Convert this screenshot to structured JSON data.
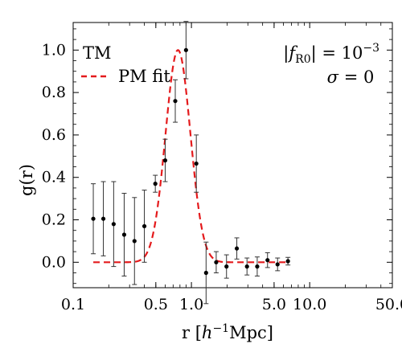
{
  "chart_data": {
    "type": "scatter",
    "xscale": "log",
    "xlim": [
      0.1,
      50.0
    ],
    "ylim": [
      -0.12,
      1.13
    ],
    "xticks": [
      {
        "value": 0.1,
        "label": "0.1"
      },
      {
        "value": 0.5,
        "label": "0.5"
      },
      {
        "value": 1.0,
        "label": "1.0"
      },
      {
        "value": 5.0,
        "label": "5.0"
      },
      {
        "value": 10.0,
        "label": "10.0"
      },
      {
        "value": 50.0,
        "label": "50.0"
      }
    ],
    "yticks": [
      {
        "value": 0.0,
        "label": "0.0"
      },
      {
        "value": 0.2,
        "label": "0.2"
      },
      {
        "value": 0.4,
        "label": "0.4"
      },
      {
        "value": 0.6,
        "label": "0.6"
      },
      {
        "value": 0.8,
        "label": "0.8"
      },
      {
        "value": 1.0,
        "label": "1.0"
      }
    ],
    "xlabel": {
      "prefix": "r [",
      "h": "h",
      "sup": "−1",
      "unit": "Mpc]"
    },
    "ylabel": "g(r)",
    "annotations": {
      "line1": {
        "pre": "|",
        "f": "f",
        "sub": "R0",
        "post": "| = 10",
        "sup": "−3"
      },
      "line2": {
        "sigma": "σ",
        "rest": " = 0"
      }
    },
    "legend_position": "top-left",
    "series": [
      {
        "name": "TM",
        "kind": "points-with-errorbars",
        "color": "#000000",
        "points": [
          {
            "x": 0.148,
            "y": 0.205,
            "err": 0.165
          },
          {
            "x": 0.18,
            "y": 0.205,
            "err": 0.175
          },
          {
            "x": 0.22,
            "y": 0.18,
            "err": 0.2
          },
          {
            "x": 0.27,
            "y": 0.13,
            "err": 0.195
          },
          {
            "x": 0.33,
            "y": 0.1,
            "err": 0.205
          },
          {
            "x": 0.4,
            "y": 0.17,
            "err": 0.17
          },
          {
            "x": 0.495,
            "y": 0.37,
            "err": 0.04
          },
          {
            "x": 0.6,
            "y": 0.48,
            "err": 0.1
          },
          {
            "x": 0.73,
            "y": 0.76,
            "err": 0.1
          },
          {
            "x": 0.9,
            "y": 1.0,
            "err": 0.135
          },
          {
            "x": 1.1,
            "y": 0.465,
            "err": 0.135
          },
          {
            "x": 1.33,
            "y": -0.05,
            "err": 0.145
          },
          {
            "x": 1.62,
            "y": 0.0,
            "err": 0.05
          },
          {
            "x": 1.98,
            "y": -0.02,
            "err": 0.055
          },
          {
            "x": 2.42,
            "y": 0.065,
            "err": 0.05
          },
          {
            "x": 2.95,
            "y": -0.02,
            "err": 0.04
          },
          {
            "x": 3.6,
            "y": -0.02,
            "err": 0.045
          },
          {
            "x": 4.4,
            "y": 0.01,
            "err": 0.035
          },
          {
            "x": 5.35,
            "y": -0.01,
            "err": 0.03
          },
          {
            "x": 6.55,
            "y": 0.005,
            "err": 0.018
          }
        ]
      },
      {
        "name": "PM fit",
        "kind": "dashed-line",
        "color": "#e41a1c",
        "curve": {
          "amplitude": 1.0,
          "center_x": 0.77,
          "sigma_log10": 0.105
        },
        "x_range": [
          0.148,
          6.6
        ]
      }
    ]
  }
}
